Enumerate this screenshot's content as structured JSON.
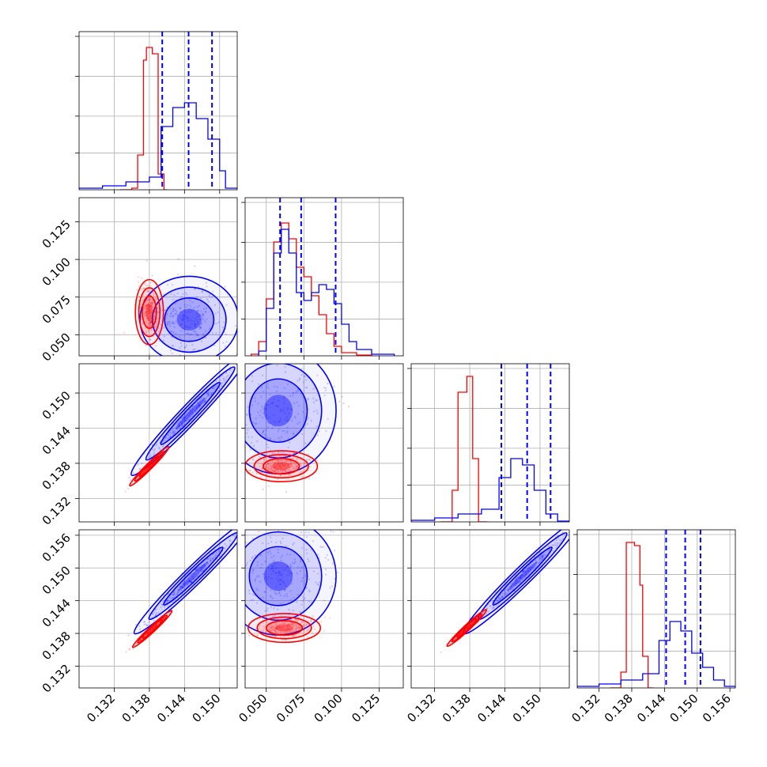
{
  "figure": {
    "type": "corner-plot",
    "colors": {
      "posterior_a": "#ff0000",
      "posterior_b": "#0000ff",
      "grid": "#b0b0b0",
      "frame": "#000000"
    }
  },
  "chart_data": {
    "type": "corner",
    "n_params": 4,
    "series": [
      {
        "color": "#ff0000"
      },
      {
        "color": "#0000ff"
      }
    ],
    "axes": [
      {
        "range": [
          0.126,
          0.153
        ],
        "ticks": [
          0.132,
          0.138,
          0.144,
          0.15
        ],
        "tick_labels": [
          "0.132",
          "0.138",
          "0.144",
          "0.150"
        ]
      },
      {
        "range": [
          0.036,
          0.141
        ],
        "ticks": [
          0.05,
          0.075,
          0.1,
          0.125
        ],
        "tick_labels": [
          "0.050",
          "0.075",
          "0.100",
          "0.125"
        ]
      },
      {
        "range": [
          0.128,
          0.155
        ],
        "ticks": [
          0.132,
          0.138,
          0.144,
          0.15
        ],
        "tick_labels": [
          "0.132",
          "0.138",
          "0.144",
          "0.150"
        ]
      },
      {
        "range": [
          0.128,
          0.157
        ],
        "ticks": [
          0.132,
          0.138,
          0.144,
          0.15,
          0.156
        ],
        "tick_labels": [
          "0.132",
          "0.138",
          "0.144",
          "0.150",
          "0.156"
        ]
      }
    ],
    "quantiles_blue": [
      [
        0.1402,
        0.1447,
        0.1487
      ],
      [
        0.0592,
        0.0732,
        0.0961
      ],
      [
        0.1434,
        0.1478,
        0.1518
      ],
      [
        0.1443,
        0.1478,
        0.1506
      ]
    ],
    "histograms": [
      {
        "red": [
          [
            0.133,
            0.135,
            0
          ],
          [
            0.135,
            0.136,
            0.01
          ],
          [
            0.136,
            0.137,
            0.22
          ],
          [
            0.137,
            0.1375,
            0.82
          ],
          [
            0.1375,
            0.1385,
            0.9
          ],
          [
            0.1385,
            0.1395,
            0.86
          ],
          [
            0.1395,
            0.1405,
            0.1
          ],
          [
            0.1405,
            0.141,
            0
          ]
        ],
        "blue": [
          [
            0.126,
            0.13,
            0.01
          ],
          [
            0.13,
            0.134,
            0.025
          ],
          [
            0.134,
            0.138,
            0.05
          ],
          [
            0.138,
            0.14,
            0.08
          ],
          [
            0.14,
            0.142,
            0.4
          ],
          [
            0.142,
            0.144,
            0.52
          ],
          [
            0.144,
            0.146,
            0.55
          ],
          [
            0.146,
            0.148,
            0.45
          ],
          [
            0.148,
            0.15,
            0.32
          ],
          [
            0.15,
            0.151,
            0.12
          ],
          [
            0.151,
            0.153,
            0.01
          ]
        ]
      },
      {
        "red": [
          [
            0.04,
            0.045,
            0.01
          ],
          [
            0.045,
            0.05,
            0.09
          ],
          [
            0.05,
            0.055,
            0.36
          ],
          [
            0.055,
            0.06,
            0.72
          ],
          [
            0.06,
            0.065,
            0.84
          ],
          [
            0.065,
            0.07,
            0.74
          ],
          [
            0.07,
            0.075,
            0.56
          ],
          [
            0.075,
            0.08,
            0.5
          ],
          [
            0.08,
            0.085,
            0.38
          ],
          [
            0.085,
            0.09,
            0.26
          ],
          [
            0.09,
            0.095,
            0.14
          ],
          [
            0.095,
            0.1,
            0.06
          ],
          [
            0.1,
            0.11,
            0.02
          ],
          [
            0.11,
            0.12,
            0.005
          ]
        ],
        "blue": [
          [
            0.045,
            0.05,
            0.03
          ],
          [
            0.05,
            0.055,
            0.3
          ],
          [
            0.055,
            0.06,
            0.65
          ],
          [
            0.06,
            0.065,
            0.8
          ],
          [
            0.065,
            0.07,
            0.65
          ],
          [
            0.07,
            0.075,
            0.4
          ],
          [
            0.075,
            0.08,
            0.35
          ],
          [
            0.08,
            0.085,
            0.4
          ],
          [
            0.085,
            0.09,
            0.45
          ],
          [
            0.09,
            0.095,
            0.42
          ],
          [
            0.095,
            0.1,
            0.33
          ],
          [
            0.1,
            0.105,
            0.2
          ],
          [
            0.105,
            0.11,
            0.09
          ],
          [
            0.11,
            0.12,
            0.04
          ],
          [
            0.12,
            0.135,
            0.01
          ]
        ]
      },
      {
        "red": [
          [
            0.133,
            0.135,
            0
          ],
          [
            0.135,
            0.136,
            0.2
          ],
          [
            0.136,
            0.1375,
            0.82
          ],
          [
            0.1375,
            0.1385,
            0.92
          ],
          [
            0.1385,
            0.1395,
            0.4
          ],
          [
            0.1395,
            0.141,
            0
          ]
        ],
        "blue": [
          [
            0.128,
            0.132,
            0.01
          ],
          [
            0.132,
            0.136,
            0.025
          ],
          [
            0.136,
            0.14,
            0.05
          ],
          [
            0.14,
            0.143,
            0.08
          ],
          [
            0.143,
            0.145,
            0.28
          ],
          [
            0.145,
            0.147,
            0.4
          ],
          [
            0.147,
            0.149,
            0.36
          ],
          [
            0.149,
            0.151,
            0.2
          ],
          [
            0.151,
            0.153,
            0.05
          ],
          [
            0.153,
            0.155,
            0.005
          ]
        ]
      },
      {
        "red": [
          [
            0.134,
            0.136,
            0
          ],
          [
            0.136,
            0.137,
            0.1
          ],
          [
            0.137,
            0.1385,
            0.92
          ],
          [
            0.1385,
            0.1395,
            0.9
          ],
          [
            0.1395,
            0.14,
            0.65
          ],
          [
            0.14,
            0.141,
            0.2
          ],
          [
            0.141,
            0.142,
            0
          ]
        ],
        "blue": [
          [
            0.128,
            0.132,
            0.01
          ],
          [
            0.132,
            0.136,
            0.025
          ],
          [
            0.136,
            0.14,
            0.05
          ],
          [
            0.14,
            0.143,
            0.09
          ],
          [
            0.143,
            0.145,
            0.3
          ],
          [
            0.145,
            0.147,
            0.42
          ],
          [
            0.147,
            0.149,
            0.36
          ],
          [
            0.149,
            0.151,
            0.22
          ],
          [
            0.151,
            0.153,
            0.13
          ],
          [
            0.153,
            0.155,
            0.05
          ],
          [
            0.155,
            0.157,
            0.01
          ]
        ]
      }
    ],
    "joint_centers": {
      "0-1": {
        "red": [
          0.138,
          0.065
        ],
        "blue": [
          0.1448,
          0.06
        ]
      },
      "0-2": {
        "red": [
          0.138,
          0.1375
        ],
        "blue": [
          0.145,
          0.1465
        ]
      },
      "1-2": {
        "red": [
          0.06,
          0.1375
        ],
        "blue": [
          0.058,
          0.147
        ]
      },
      "0-3": {
        "red": [
          0.1385,
          0.1388
        ],
        "blue": [
          0.1455,
          0.1485
        ]
      },
      "1-3": {
        "red": [
          0.062,
          0.139
        ],
        "blue": [
          0.058,
          0.1485
        ]
      },
      "2-3": {
        "red": [
          0.1375,
          0.139
        ],
        "blue": [
          0.147,
          0.1485
        ]
      }
    }
  }
}
